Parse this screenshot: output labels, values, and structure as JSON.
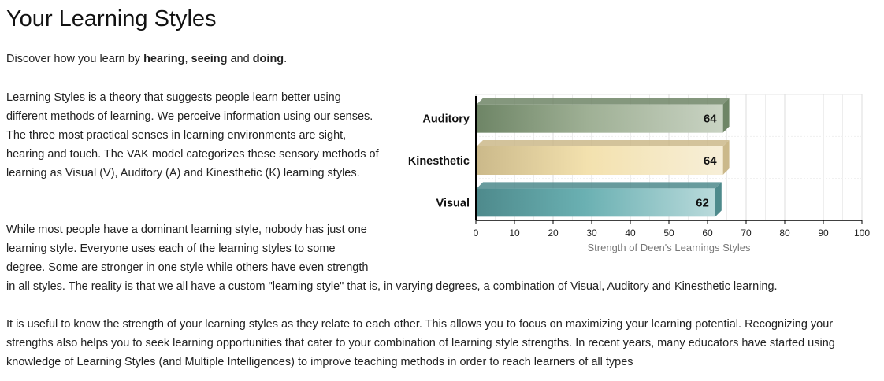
{
  "page": {
    "title": "Your Learning Styles",
    "intro": {
      "prefix": "Discover how you learn by ",
      "bold1": "hearing",
      "sep1": ", ",
      "bold2": "seeing",
      "sep2": " and ",
      "bold3": "doing",
      "suffix": "."
    },
    "para1": "Learning Styles is a theory that suggests people learn better using different methods of learning. We perceive information using our senses. The three most practical senses in learning environments are sight, hearing and touch. The VAK model categorizes these sensory methods of learning as Visual (V), Auditory (A) and Kinesthetic (K) learning styles.",
    "para2_lines": [
      "While most people have a dominant learning style, nobody has just one",
      "learning style. Everyone uses each of the learning styles to some",
      "degree. Some are stronger in one style while others have even strength",
      "in all styles. The reality is that we all have a custom \"learning style\" that is, in varying degrees, a combination of Visual, Auditory and Kinesthetic learning."
    ],
    "para3": "It is useful to know the strength of your learning styles as they relate to each other. This allows you to focus on maximizing your learning potential. Recognizing your strengths also helps you to seek learning opportunities that cater to your combination of learning style strengths. In recent years, many educators have started using knowledge of Learning Styles (and Multiple Intelligences) to improve teaching methods in order to reach learners of all types"
  },
  "chart_data": {
    "type": "bar",
    "orientation": "horizontal",
    "categories": [
      "Auditory",
      "Kinesthetic",
      "Visual"
    ],
    "values": [
      64,
      64,
      62
    ],
    "xlabel": "Strength of Deen's Learnings Styles",
    "xlim": [
      0,
      100
    ],
    "xticks": [
      0,
      10,
      20,
      30,
      40,
      50,
      60,
      70,
      80,
      90,
      100
    ],
    "grid": true,
    "colors": {
      "Auditory": [
        "#6e8566",
        "#9fb095",
        "#c9d3c3"
      ],
      "Kinesthetic": [
        "#cbb98a",
        "#f3e1ae",
        "#f7efd8"
      ],
      "Visual": [
        "#4e8a8c",
        "#6ab0b2",
        "#b9dadb"
      ]
    }
  }
}
